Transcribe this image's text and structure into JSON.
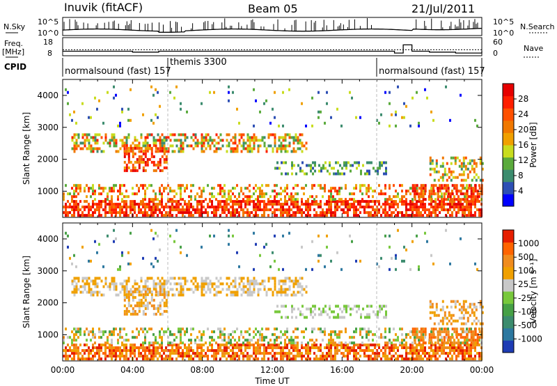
{
  "header": {
    "station": "Inuvik (fitACF)",
    "beam": "Beam 05",
    "date": "21/Jul/2011"
  },
  "sky_panel": {
    "left_label": "N.Sky",
    "right_label": "N.Search",
    "left_ticks": [
      "10^5",
      "10^0"
    ],
    "right_ticks": [
      "10^5",
      "10^0"
    ]
  },
  "freq_panel": {
    "left_label_1": "Freq.",
    "left_label_2": "[MHz]",
    "left_ticks": [
      "18",
      "8"
    ],
    "right_label": "Nave",
    "right_ticks": [
      "60",
      "0"
    ]
  },
  "cpid_panel": {
    "label": "CPID",
    "modes": [
      "normalsound (fast) 157",
      "themis 3300",
      "normalsound (fast) 157"
    ]
  },
  "time_axis": {
    "title": "Time UT",
    "ticks": [
      "00:00",
      "04:00",
      "08:00",
      "12:00",
      "16:00",
      "20:00",
      "00:00"
    ]
  },
  "power_colorbar": {
    "title": "Power [dB]",
    "ticks": [
      "28",
      "24",
      "20",
      "16",
      "12",
      "8",
      "4"
    ],
    "colors": [
      "#0000ff",
      "#2d4fb4",
      "#3c8c6e",
      "#5aaa3c",
      "#c8dc1e",
      "#f0a000",
      "#f07800",
      "#ff5000",
      "#ff1e00",
      "#e60000"
    ]
  },
  "velocity_colorbar": {
    "title": "Velocity [m s⁻¹]",
    "ticks": [
      "1000",
      "500",
      "100",
      "25",
      "-25",
      "-100",
      "-500",
      "-1000"
    ],
    "colors": [
      "#1e3cb4",
      "#2d78a0",
      "#3c8c6e",
      "#46a046",
      "#78c83c",
      "#c8c8c8",
      "#f0a000",
      "#f08c1e",
      "#ff6400",
      "#e61e00"
    ]
  },
  "chart_data": [
    {
      "type": "line",
      "title": "",
      "xlabel": "",
      "ylabel": "N.Sky",
      "series": [
        {
          "name": "N.Sky",
          "x_hours": [
            0,
            2,
            4,
            6,
            8,
            10,
            12,
            14,
            16,
            18,
            20,
            22,
            24
          ],
          "values_log10": [
            1.5,
            1.6,
            1.7,
            1.3,
            1.6,
            1.7,
            1.7,
            1.8,
            1.8,
            1.7,
            1.9,
            2.2,
            2.0
          ]
        }
      ]
    },
    {
      "type": "line",
      "title": "",
      "ylabel": "Freq. [MHz]",
      "ylim": [
        8,
        18
      ],
      "series": [
        {
          "name": "Freq.",
          "x_hours": [
            0,
            2,
            4,
            5.5,
            6,
            18,
            19,
            19.5,
            20,
            21,
            22.5,
            24
          ],
          "values": [
            10.5,
            10.5,
            10,
            10.5,
            10.5,
            10.5,
            9.5,
            14,
            10.5,
            10,
            9.5,
            10.5
          ]
        },
        {
          "name": "Nave",
          "x_hours": [
            0,
            6,
            18,
            24
          ],
          "values": [
            20,
            20,
            20,
            20
          ]
        }
      ]
    },
    {
      "type": "heatmap",
      "title": "",
      "xlabel": "Time UT",
      "ylabel": "Slant Range [km]",
      "ylim": [
        180,
        4500
      ],
      "yticks": [
        1000,
        2000,
        3000,
        4000
      ],
      "xlim_hours": [
        0,
        24
      ],
      "colorbar": "Power [dB]",
      "colorbar_ticks": [
        28,
        24,
        20,
        16,
        12,
        8,
        4
      ]
    },
    {
      "type": "heatmap",
      "title": "",
      "xlabel": "Time UT",
      "ylabel": "Slant Range [km]",
      "ylim": [
        180,
        4500
      ],
      "yticks": [
        1000,
        2000,
        3000,
        4000
      ],
      "xlim_hours": [
        0,
        24
      ],
      "colorbar": "Velocity [m s⁻¹]",
      "colorbar_ticks": [
        1000,
        500,
        100,
        25,
        -25,
        -100,
        -500,
        -1000
      ]
    }
  ]
}
